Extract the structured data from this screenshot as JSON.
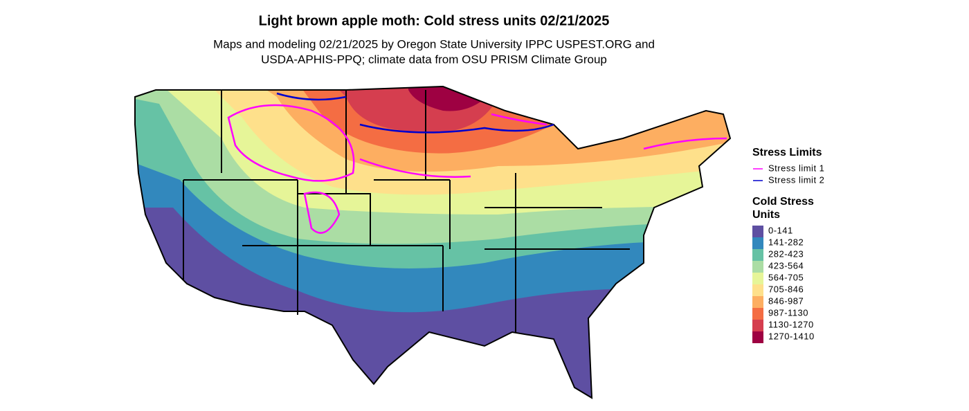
{
  "title": "Light brown apple moth: Cold stress units 02/21/2025",
  "subtitle": [
    "Maps and modeling 02/21/2025 by Oregon State University IPPC USPEST.ORG and",
    "USDA-APHIS-PPQ; climate data from OSU PRISM Climate Group"
  ],
  "legend": {
    "stress_limits": {
      "title": "Stress Limits",
      "items": [
        {
          "label": "Stress limit 1",
          "color": "#ff00ff"
        },
        {
          "label": "Stress limit 2",
          "color": "#0000cc"
        }
      ]
    },
    "cold_stress_units": {
      "title": [
        "Cold Stress",
        "Units"
      ],
      "items": [
        {
          "label": "0-141",
          "color": "#5e4fa2"
        },
        {
          "label": "141-282",
          "color": "#3288bd"
        },
        {
          "label": "282-423",
          "color": "#66c2a5"
        },
        {
          "label": "423-564",
          "color": "#abdda4"
        },
        {
          "label": "564-705",
          "color": "#e6f598"
        },
        {
          "label": "705-846",
          "color": "#fee08b"
        },
        {
          "label": "846-987",
          "color": "#fdae61"
        },
        {
          "label": "987-1130",
          "color": "#f46d43"
        },
        {
          "label": "1130-1270",
          "color": "#d53e4f"
        },
        {
          "label": "1270-1410",
          "color": "#9e0142"
        }
      ]
    }
  }
}
